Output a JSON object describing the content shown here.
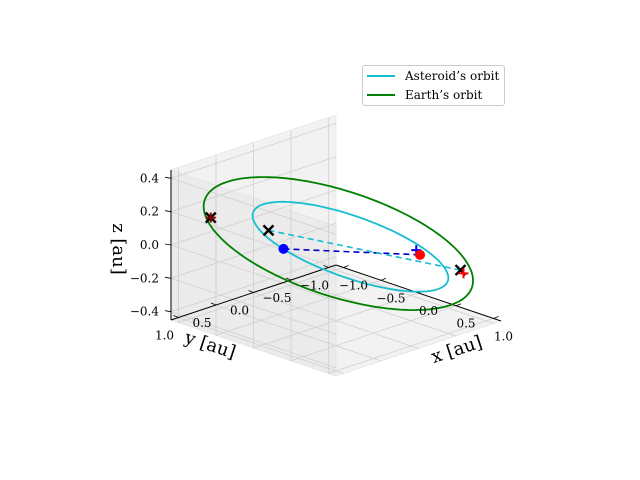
{
  "chart_data": {
    "type": "line",
    "projection": "3d",
    "xlabel": "x [au]",
    "ylabel": "y [au]",
    "zlabel": "z [au]",
    "xlim": [
      -1.1,
      1.1
    ],
    "ylim": [
      -1.1,
      1.1
    ],
    "zlim": [
      -0.45,
      0.45
    ],
    "x_ticks": [
      "−1.0",
      "−0.5",
      "0.0",
      "0.5",
      "1.0"
    ],
    "y_ticks": [
      "−1.0",
      "−0.5",
      "0.0",
      "0.5",
      "1.0"
    ],
    "z_ticks": [
      "−0.4",
      "−0.2",
      "0.0",
      "0.2",
      "0.4"
    ],
    "x_tick_values": [
      -1.0,
      -0.5,
      0.0,
      0.5,
      1.0
    ],
    "y_tick_values": [
      -1.0,
      -0.5,
      0.0,
      0.5,
      1.0
    ],
    "z_tick_values": [
      -0.4,
      -0.2,
      0.0,
      0.2,
      0.4
    ],
    "grid": true,
    "legend_position": "top-right",
    "series": [
      {
        "name": "Asteroid's orbit",
        "color": "#17becf",
        "kind": "ellipse",
        "semi_major_axis": 1.0,
        "eccentricity": 0.18,
        "inclination_deg": 22,
        "ascending_node_deg": 40,
        "arg_periapsis_deg": 60
      },
      {
        "name": "Earth's orbit",
        "color": "#008000",
        "kind": "ellipse",
        "semi_major_axis": 1.35,
        "eccentricity": 0.05,
        "inclination_deg": 20,
        "ascending_node_deg": 55,
        "arg_periapsis_deg": 10
      }
    ],
    "markers": [
      {
        "label": "start-earth",
        "symbol": "x",
        "color": "#000000",
        "x": -0.72,
        "y": 0.95,
        "z": 0.2
      },
      {
        "label": "start-asteroid",
        "symbol": "+",
        "color": "#8b0000",
        "x": -0.72,
        "y": 0.95,
        "z": 0.2
      },
      {
        "label": "asteroid-pos-1",
        "symbol": "x",
        "color": "#000000",
        "x": -0.35,
        "y": 0.55,
        "z": 0.12
      },
      {
        "label": "earth-pos-1",
        "symbol": "o",
        "color": "#0000ff",
        "x": -0.28,
        "y": 0.42,
        "z": 0.0
      },
      {
        "label": "asteroid-pos-2",
        "symbol": "+",
        "color": "#0000ff",
        "x": 0.72,
        "y": -0.35,
        "z": 0.03
      },
      {
        "label": "earth-pos-2",
        "symbol": "o",
        "color": "#ff0000",
        "x": 0.74,
        "y": -0.38,
        "z": 0.0
      },
      {
        "label": "asteroid-pos-3",
        "symbol": "x",
        "color": "#000000",
        "x": 0.88,
        "y": -0.78,
        "z": -0.13
      },
      {
        "label": "earth-pos-3",
        "symbol": "+",
        "color": "#ff0000",
        "x": 0.9,
        "y": -0.8,
        "z": -0.15
      }
    ],
    "connectors": [
      {
        "from": "earth-pos-1",
        "to": "earth-pos-2",
        "color": "#0000cd",
        "style": "dashed"
      },
      {
        "from": "asteroid-pos-1",
        "to": "asteroid-pos-3",
        "color": "#17becf",
        "style": "dashed"
      }
    ]
  },
  "legend": {
    "items": [
      {
        "label": "Asteroid’s orbit",
        "color": "#17becf"
      },
      {
        "label": "Earth’s orbit",
        "color": "#008000"
      }
    ]
  }
}
